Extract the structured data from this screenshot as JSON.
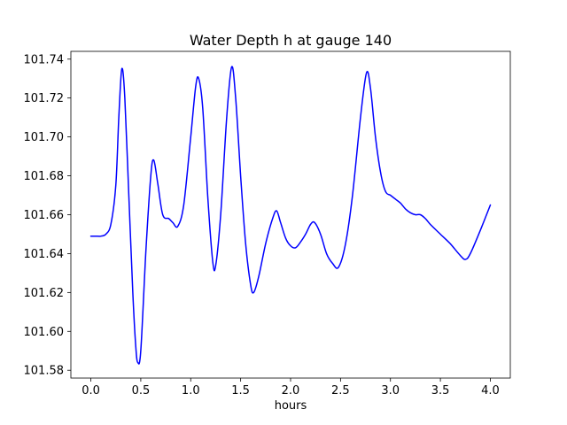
{
  "figure": {
    "title": "Water Depth h at gauge 140",
    "xlabel": "hours"
  },
  "chart_data": {
    "type": "line",
    "title": "Water Depth h at gauge 140",
    "xlabel": "hours",
    "ylabel": "",
    "grid": false,
    "legend": null,
    "line_color": "#0000ff",
    "axis_color": "#000000",
    "background_color": "#ffffff",
    "xlim": [
      -0.2,
      4.2
    ],
    "ylim": [
      101.576,
      101.744
    ],
    "xticks": [
      "0.0",
      "0.5",
      "1.0",
      "1.5",
      "2.0",
      "2.5",
      "3.0",
      "3.5",
      "4.0"
    ],
    "yticks": [
      "101.58",
      "101.60",
      "101.62",
      "101.64",
      "101.66",
      "101.68",
      "101.70",
      "101.72",
      "101.74"
    ],
    "series": [
      {
        "name": "h",
        "x": [
          0.0,
          0.05,
          0.1,
          0.15,
          0.2,
          0.25,
          0.28,
          0.31,
          0.34,
          0.38,
          0.42,
          0.45,
          0.47,
          0.5,
          0.55,
          0.6,
          0.63,
          0.67,
          0.72,
          0.78,
          0.82,
          0.87,
          0.93,
          1.0,
          1.05,
          1.08,
          1.12,
          1.17,
          1.22,
          1.25,
          1.3,
          1.36,
          1.41,
          1.45,
          1.5,
          1.55,
          1.6,
          1.63,
          1.68,
          1.75,
          1.82,
          1.86,
          1.9,
          1.95,
          2.0,
          2.05,
          2.1,
          2.15,
          2.2,
          2.24,
          2.3,
          2.36,
          2.42,
          2.48,
          2.55,
          2.62,
          2.7,
          2.76,
          2.8,
          2.85,
          2.9,
          2.95,
          3.0,
          3.05,
          3.1,
          3.15,
          3.2,
          3.25,
          3.3,
          3.35,
          3.4,
          3.5,
          3.6,
          3.7,
          3.75,
          3.8,
          3.9,
          4.0
        ],
        "y": [
          101.649,
          101.649,
          101.649,
          101.65,
          101.655,
          101.675,
          101.71,
          101.735,
          101.72,
          101.67,
          101.62,
          101.592,
          101.584,
          101.59,
          101.64,
          101.68,
          101.688,
          101.676,
          101.66,
          101.658,
          101.656,
          101.654,
          101.665,
          101.7,
          101.726,
          101.73,
          101.715,
          101.67,
          101.636,
          101.634,
          101.66,
          101.71,
          101.736,
          101.72,
          101.68,
          101.645,
          101.624,
          101.62,
          101.628,
          101.645,
          101.658,
          101.662,
          101.656,
          101.648,
          101.644,
          101.643,
          101.646,
          101.65,
          101.655,
          101.656,
          101.65,
          101.64,
          101.635,
          101.633,
          101.645,
          101.67,
          101.71,
          101.733,
          101.725,
          101.7,
          101.682,
          101.672,
          101.67,
          101.668,
          101.666,
          101.663,
          101.661,
          101.66,
          101.66,
          101.658,
          101.655,
          101.65,
          101.645,
          101.639,
          101.637,
          101.64,
          101.652,
          101.665
        ]
      }
    ]
  }
}
